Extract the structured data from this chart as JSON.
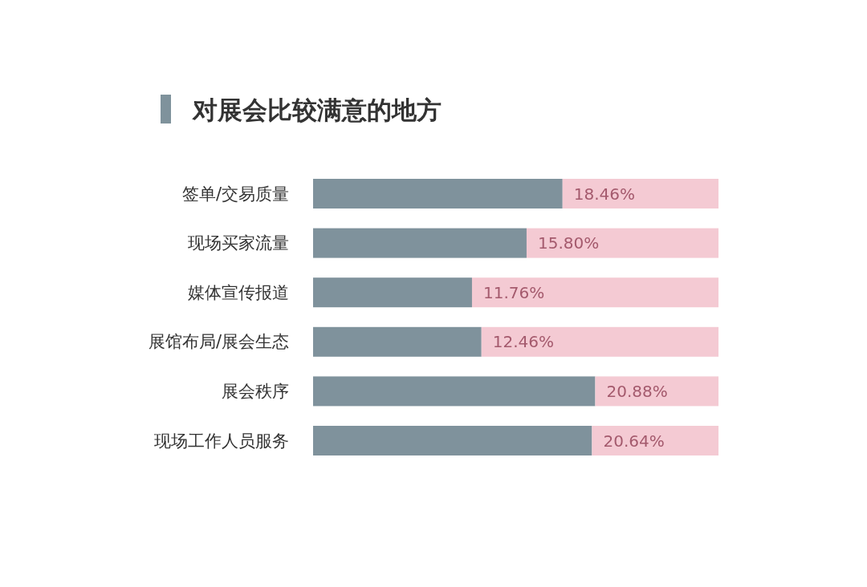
{
  "chart_data": {
    "type": "bar",
    "orientation": "horizontal",
    "stacked": true,
    "title": "对展会比较满意的地方",
    "categories": [
      "签单/交易质量",
      "现场买家流量",
      "媒体宣传报道",
      "展馆布局/展会生态",
      "展会秩序",
      "现场工作人员服务"
    ],
    "series": [
      {
        "color": "#7f929c",
        "values": [
          18.46,
          15.8,
          11.76,
          12.46,
          20.88,
          20.64
        ],
        "value_labels": [
          "18.46%",
          "15.80%",
          "11.76%",
          "12.46%",
          "20.88%",
          "20.64%"
        ]
      },
      {
        "color": "#f4cad3",
        "values": [
          11.54,
          14.2,
          18.24,
          17.54,
          9.12,
          9.36
        ]
      }
    ],
    "xlim": [
      0,
      30
    ]
  }
}
